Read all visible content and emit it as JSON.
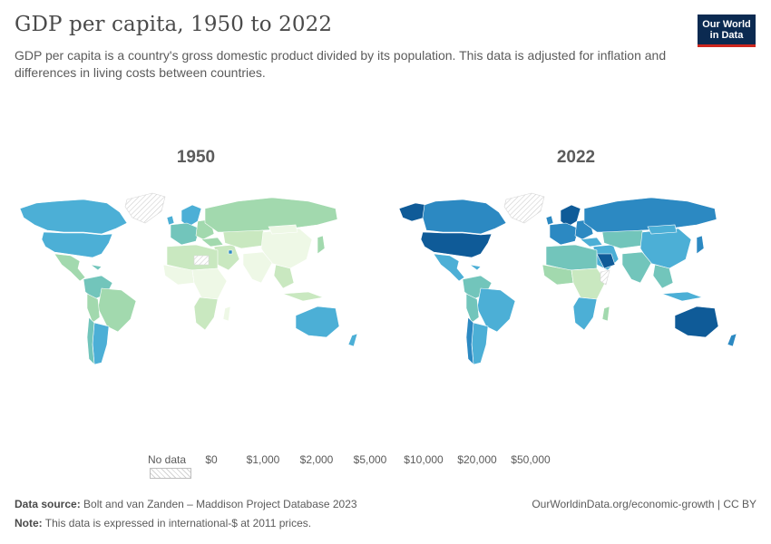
{
  "header": {
    "title": "GDP per capita, 1950 to 2022",
    "subtitle": "GDP per capita is a country's gross domestic product divided by its population. This data is adjusted for inflation and differences in living costs between countries."
  },
  "logo": {
    "line1": "Our World",
    "line2": "in Data"
  },
  "maps": [
    {
      "year": "1950"
    },
    {
      "year": "2022"
    }
  ],
  "legend": {
    "no_data_label": "No data",
    "ticks": [
      "$0",
      "$1,000",
      "$2,000",
      "$5,000",
      "$10,000",
      "$20,000",
      "$50,000"
    ],
    "colors": [
      "#eef8e6",
      "#c9e8c0",
      "#a2d9ae",
      "#72c5bb",
      "#4cafd6",
      "#2c89c2",
      "#0f5b98"
    ]
  },
  "footer": {
    "source_label": "Data source:",
    "source_text": "Bolt and van Zanden – Maddison Project Database 2023",
    "note_label": "Note:",
    "note_text": "This data is expressed in international-$ at 2011 prices.",
    "right_text": "OurWorldinData.org/economic-growth | CC BY"
  }
}
